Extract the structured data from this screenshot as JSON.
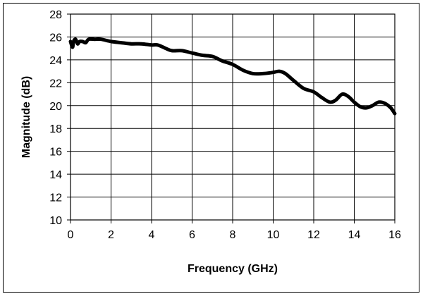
{
  "chart_data": {
    "type": "line",
    "xlabel": "Frequency (GHz)",
    "ylabel": "Magnitude (dB)",
    "xlim": [
      0,
      16
    ],
    "ylim": [
      10,
      28
    ],
    "xticks": [
      0,
      2,
      4,
      6,
      8,
      10,
      12,
      14,
      16
    ],
    "yticks": [
      10,
      12,
      14,
      16,
      18,
      20,
      22,
      24,
      26,
      28
    ],
    "grid": true,
    "legend": "none",
    "series": [
      {
        "color": "#000000",
        "x": [
          0.0,
          0.1,
          0.15,
          0.25,
          0.35,
          0.45,
          0.6,
          0.75,
          0.9,
          1.2,
          1.5,
          2.0,
          2.5,
          3.0,
          3.5,
          4.0,
          4.3,
          4.7,
          5.0,
          5.5,
          6.0,
          6.5,
          7.0,
          7.5,
          8.0,
          8.5,
          9.0,
          9.5,
          10.0,
          10.3,
          10.6,
          11.0,
          11.5,
          12.0,
          12.4,
          12.8,
          13.1,
          13.4,
          13.7,
          14.0,
          14.3,
          14.6,
          14.9,
          15.2,
          15.5,
          15.8,
          16.0
        ],
        "y": [
          25.6,
          25.1,
          25.6,
          25.8,
          25.4,
          25.6,
          25.6,
          25.5,
          25.8,
          25.8,
          25.8,
          25.6,
          25.5,
          25.4,
          25.4,
          25.3,
          25.3,
          25.0,
          24.8,
          24.8,
          24.6,
          24.4,
          24.3,
          23.9,
          23.6,
          23.1,
          22.8,
          22.8,
          22.9,
          23.0,
          22.8,
          22.2,
          21.5,
          21.2,
          20.7,
          20.3,
          20.5,
          21.0,
          20.8,
          20.3,
          19.9,
          19.8,
          20.0,
          20.3,
          20.2,
          19.8,
          19.3
        ]
      }
    ]
  }
}
